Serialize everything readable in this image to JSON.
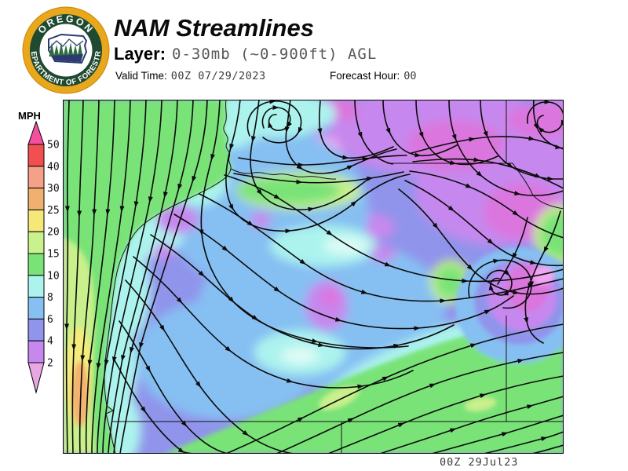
{
  "header": {
    "title": "NAM Streamlines",
    "layer_label": "Layer:",
    "layer_value": "0-30mb (~0-900ft) AGL",
    "valid_time_label": "Valid Time:",
    "valid_time_value": "00Z 07/29/2023",
    "forecast_hour_label": "Forecast Hour:",
    "forecast_hour_value": "00"
  },
  "logo": {
    "arc_top": "OREGON",
    "arc_bottom": "DEPARTMENT OF FORESTRY",
    "colors": {
      "gold": "#E9A71C",
      "gold_edge": "#C8860A",
      "dark_green": "#1F4A31",
      "navy": "#2B3B72",
      "tree_green": "#2F6B3F",
      "white": "#FFFFFF"
    }
  },
  "colorbar": {
    "title": "MPH",
    "tick_labels": [
      "50",
      "40",
      "30",
      "25",
      "20",
      "15",
      "10",
      "8",
      "6",
      "4",
      "2"
    ],
    "segment_colors_top_to_bottom": [
      "#F4509E",
      "#F25050",
      "#F5A088",
      "#F2B070",
      "#F5E878",
      "#CBF08E",
      "#79E378",
      "#ACF3EE",
      "#86BFF2",
      "#9094EB",
      "#C688EE",
      "#E8A6E2"
    ]
  },
  "map": {
    "timestamp": "00Z 29Jul23",
    "palette": {
      "base_periwinkle": "#9094EB",
      "green": "#79E378",
      "yellow_green": "#C9F08C",
      "yellow": "#F4EC7C",
      "orange": "#F3B26E",
      "pale_cyan": "#ACF3EE",
      "near_white_cyan": "#DDFBF6",
      "light_blue": "#86BFF2",
      "periwinkle": "#9094EB",
      "orchid": "#C688EE",
      "magenta": "#DB76DE",
      "pink": "#F0A6F2",
      "stream_black": "#0B0B0B",
      "boundary_black": "#111111"
    }
  }
}
